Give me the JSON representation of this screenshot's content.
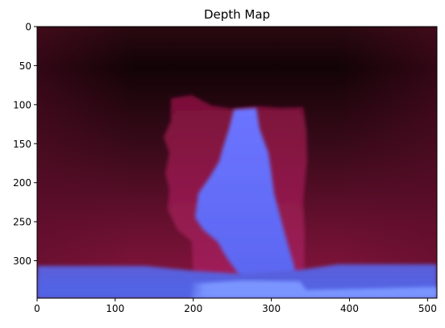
{
  "chart_data": {
    "type": "heatmap",
    "title": "Depth Map",
    "xlabel": "",
    "ylabel": "",
    "image_width": 512,
    "image_height": 348,
    "xlim": [
      0,
      512
    ],
    "ylim": [
      348,
      0
    ],
    "xticks": [
      0,
      100,
      200,
      300,
      400,
      500
    ],
    "yticks": [
      0,
      50,
      100,
      150,
      200,
      250,
      300
    ],
    "grid": false,
    "colors": {
      "far": "#120306",
      "mid": "#8a1540",
      "near": "#6a72ff",
      "floor": "#5560e0",
      "base": "#7a95ff"
    },
    "regions": [
      {
        "name": "background",
        "x_range": [
          0,
          512
        ],
        "y_range": [
          0,
          348
        ],
        "depth": "far"
      },
      {
        "name": "lower-wall-band",
        "x_range": [
          0,
          512
        ],
        "y_range": [
          180,
          305
        ],
        "depth": "mid-far"
      },
      {
        "name": "back-panel",
        "x_range": [
          160,
          345
        ],
        "y_range": [
          105,
          330
        ],
        "depth": "mid"
      },
      {
        "name": "central-figure",
        "x_range": [
          205,
          335
        ],
        "y_range": [
          105,
          345
        ],
        "depth": "near"
      },
      {
        "name": "floor",
        "x_range": [
          0,
          512
        ],
        "y_range": [
          305,
          348
        ],
        "depth": "near"
      }
    ]
  }
}
